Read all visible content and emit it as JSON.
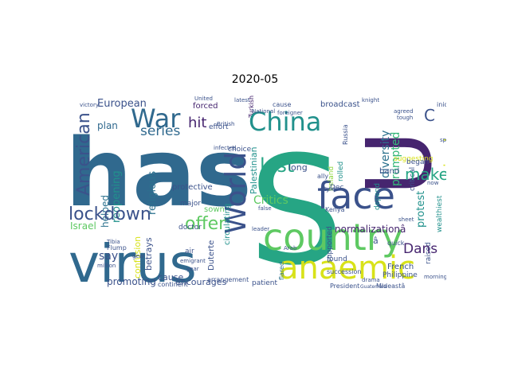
{
  "title": "2020-05",
  "palette": {
    "purple_dark": "#46256f",
    "purple": "#482878",
    "indigo": "#3b528b",
    "blue": "#2c728e",
    "teal_blue": "#30698e",
    "teal": "#21918c",
    "teal_green": "#26a584",
    "green": "#35b779",
    "light_green": "#5ec962",
    "lime": "#90d743",
    "yellow": "#d8e219",
    "bright_yellow": "#fde725"
  },
  "words": {
    "has": "has",
    "s": "S",
    "u": "U",
    "virus": "virus",
    "country": "country",
    "face": "face",
    "anaemic": "anaemic",
    "world": "World",
    "war": "War",
    "china": "China",
    "american": "American",
    "lockdown": "lockdown",
    "last": "last",
    "make": "make",
    "c": "C",
    "praised": "praised",
    "offer": "offer",
    "series": "series",
    "hit": "hit",
    "dans": "Dans",
    "critics": "Critics",
    "religious": "religious",
    "reopening": "reopening",
    "european": "European",
    "plan": "plan",
    "helped": "helped",
    "israel": "Israel",
    "promoting": "promoting",
    "say": "say",
    "cause": "cause",
    "encourages": "encourages",
    "normalization": "normalizationâ",
    "diversity": "diversity",
    "prompted": "prompted",
    "protest": "protest",
    "palestinian": "Palestinian",
    "band": "band",
    "protective": "protective",
    "confusion": "confusion",
    "betrays": "betrays",
    "sown": "sown",
    "doctor": "doctor",
    "major": "major",
    "patient": "patient",
    "continent": "continent",
    "circulating": "circulating",
    "long": "long",
    "french": "French",
    "philippine": "Philippine",
    "president": "President",
    "mideast": "Mideastâ",
    "a_hat": "â",
    "dec": "Dec",
    "found": "found",
    "duterte": "Duterte",
    "air": "air",
    "suggesting": "suggesting",
    "critical": "critical",
    "began": "began",
    "broadcast": "broadcast",
    "forced": "forced",
    "effort": "effort",
    "choice": "choice",
    "arrangement": "arrangement",
    "succession": "succession",
    "supported": "supported",
    "raised": "raised",
    "wealthiest": "wealthiest",
    "ireland": "Ireland",
    "rolled": "rolled",
    "depend": "depend",
    "kenya": "Kenya",
    "flump": "Flump",
    "emigrant": "emigrant",
    "british": "British",
    "turkish": "Turkish",
    "cause_small": "cause",
    "united": "United",
    "ally": "ally",
    "style": "style",
    "quick": "quick",
    "flared": "flared",
    "russia": "Russia",
    "national": "National",
    "false": "false",
    "leader": "leader",
    "dramatic": "drama",
    "iniquity": "iniquity",
    "knight": "knight",
    "agreed": "agreed",
    "tough": "tough",
    "now": "now",
    "guatemala": "Guatemala",
    "foreigner": "foreigner",
    "year": "year",
    "victory": "victory",
    "million": "million",
    "morning": "morning",
    "infected": "infected",
    "gear": "gear",
    "tibia": "Tibia",
    "arab": "Arab",
    "sheet": "sheet",
    "spur": "spur",
    "latest": "latest"
  }
}
